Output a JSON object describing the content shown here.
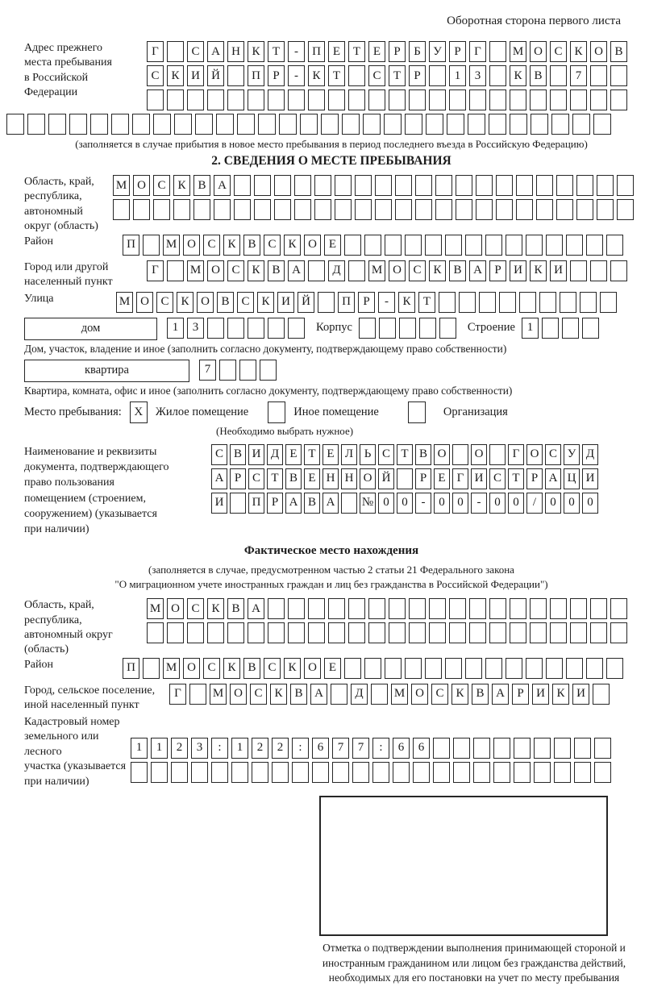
{
  "header": {
    "note": "Оборотная сторона первого листа"
  },
  "prev_address": {
    "label": "Адрес прежнего\nместа пребывания\nв Российской\nФедерации",
    "row1": [
      "Г",
      "",
      "С",
      "А",
      "Н",
      "К",
      "Т",
      "-",
      "П",
      "Е",
      "Т",
      "Е",
      "Р",
      "Б",
      "У",
      "Р",
      "Г",
      "",
      "М",
      "О",
      "С",
      "К",
      "О",
      "В"
    ],
    "row2": [
      "С",
      "К",
      "И",
      "Й",
      "",
      "П",
      "Р",
      "-",
      "К",
      "Т",
      "",
      "С",
      "Т",
      "Р",
      "",
      "1",
      "3",
      "",
      "К",
      "В",
      "",
      "7",
      "",
      ""
    ],
    "row3_empty": 24,
    "row4_empty": 29,
    "note": "(заполняется в случае прибытия в новое место пребывания в период последнего въезда в Российскую Федерацию)"
  },
  "section2": {
    "title": "2. СВЕДЕНИЯ О МЕСТЕ ПРЕБЫВАНИЯ",
    "oblast": {
      "label": "Область, край,\nреспублика,\nавтономный\nокруг (область)",
      "row1": [
        "М",
        "О",
        "С",
        "К",
        "В",
        "А",
        "",
        "",
        "",
        "",
        "",
        "",
        "",
        "",
        "",
        "",
        "",
        "",
        "",
        "",
        "",
        "",
        "",
        "",
        "",
        ""
      ],
      "row2_empty": 26
    },
    "rayon": {
      "label": "Район",
      "row": [
        "П",
        "",
        "М",
        "О",
        "С",
        "К",
        "В",
        "С",
        "К",
        "О",
        "Е",
        "",
        "",
        "",
        "",
        "",
        "",
        "",
        "",
        "",
        "",
        "",
        "",
        "",
        ""
      ]
    },
    "gorod": {
      "label": "Город или другой\nнаселенный пункт",
      "row": [
        "Г",
        "",
        "М",
        "О",
        "С",
        "К",
        "В",
        "А",
        "",
        "Д",
        "",
        "М",
        "О",
        "С",
        "К",
        "В",
        "А",
        "Р",
        "И",
        "К",
        "И",
        "",
        "",
        ""
      ]
    },
    "ulitsa": {
      "label": "Улица",
      "row": [
        "М",
        "О",
        "С",
        "К",
        "О",
        "В",
        "С",
        "К",
        "И",
        "Й",
        "",
        "П",
        "Р",
        "-",
        "К",
        "Т",
        "",
        "",
        "",
        "",
        "",
        "",
        "",
        "",
        ""
      ]
    },
    "dom": {
      "box_label": "дом",
      "cells": [
        "1",
        "3",
        "",
        "",
        "",
        "",
        ""
      ],
      "korpus_label": "Корпус",
      "korpus_empty": 5,
      "stroenie_label": "Строение",
      "stroenie_cells": [
        "1",
        "",
        "",
        ""
      ],
      "caption": "Дом, участок, владение и иное (заполнить согласно документу, подтверждающему право собственности)"
    },
    "kvartira": {
      "box_label": "квартира",
      "cells": [
        "7",
        "",
        "",
        ""
      ],
      "caption": "Квартира, комната, офис и иное (заполнить согласно документу, подтверждающему право собственности)"
    },
    "mesto": {
      "label": "Место пребывания:",
      "options": [
        {
          "label": "Жилое помещение",
          "mark": "X"
        },
        {
          "label": "Иное помещение",
          "mark": ""
        },
        {
          "label": "Организация",
          "mark": ""
        }
      ],
      "note": "(Необходимо выбрать нужное)"
    },
    "doc": {
      "label": "Наименование и реквизиты\nдокумента, подтверждающего\nправо пользования\nпомещением (строением,\nсооружением) (указывается\nпри наличии)",
      "row1": [
        "С",
        "В",
        "И",
        "Д",
        "Е",
        "Т",
        "Е",
        "Л",
        "Ь",
        "С",
        "Т",
        "В",
        "О",
        "",
        "О",
        "",
        "Г",
        "О",
        "С",
        "У",
        "Д"
      ],
      "row2": [
        "А",
        "Р",
        "С",
        "Т",
        "В",
        "Е",
        "Н",
        "Н",
        "О",
        "Й",
        "",
        "Р",
        "Е",
        "Г",
        "И",
        "С",
        "Т",
        "Р",
        "А",
        "Ц",
        "И"
      ],
      "row3": [
        "И",
        "",
        "П",
        "Р",
        "А",
        "В",
        "А",
        "",
        "№",
        "0",
        "0",
        "-",
        "0",
        "0",
        "-",
        "0",
        "0",
        "/",
        "0",
        "0",
        "0"
      ]
    }
  },
  "fact": {
    "title": "Фактическое место нахождения",
    "note1": "(заполняется в случае, предусмотренном частью 2 статьи 21 Федерального закона",
    "note2": "\"О миграционном учете иностранных граждан и лиц без гражданства в Российской Федерации\")",
    "oblast": {
      "label": "Область, край,\nреспублика,\nавтономный округ\n(область)",
      "row1": [
        "М",
        "О",
        "С",
        "К",
        "В",
        "А",
        "",
        "",
        "",
        "",
        "",
        "",
        "",
        "",
        "",
        "",
        "",
        "",
        "",
        "",
        "",
        "",
        "",
        ""
      ],
      "row2_empty": 24
    },
    "rayon": {
      "label": "Район",
      "row": [
        "П",
        "",
        "М",
        "О",
        "С",
        "К",
        "В",
        "С",
        "К",
        "О",
        "Е",
        "",
        "",
        "",
        "",
        "",
        "",
        "",
        "",
        "",
        "",
        "",
        "",
        "",
        ""
      ]
    },
    "gorod": {
      "label": "Город, сельское поселение,\nиной населенный пункт",
      "row": [
        "Г",
        "",
        "М",
        "О",
        "С",
        "К",
        "В",
        "А",
        "",
        "Д",
        "",
        "М",
        "О",
        "С",
        "К",
        "В",
        "А",
        "Р",
        "И",
        "К",
        "И",
        ""
      ]
    },
    "kadastr": {
      "label": "Кадастровый номер\nземельного или лесного\nучастка (указывается\nпри наличии)",
      "row1": [
        "1",
        "1",
        "2",
        "3",
        ":",
        "1",
        "2",
        "2",
        ":",
        "6",
        "7",
        "7",
        ":",
        "6",
        "6",
        "",
        "",
        "",
        "",
        "",
        "",
        "",
        "",
        ""
      ],
      "row2_empty": 24
    }
  },
  "stamp": {
    "caption": "Отметка о подтверждении выполнения принимающей стороной и иностранным гражданином или лицом без гражданства действий, необходимых для его постановки на учет по месту пребывания"
  }
}
